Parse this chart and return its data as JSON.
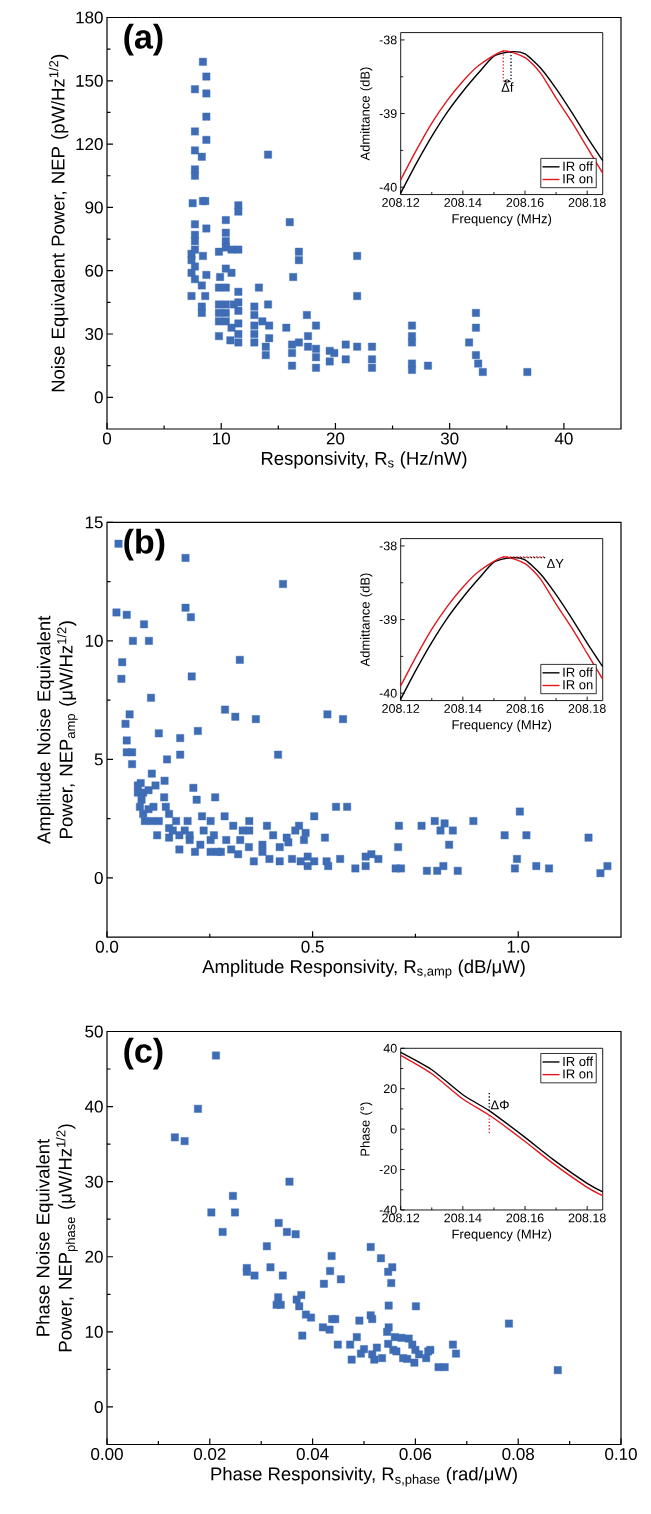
{
  "chart_data": [
    {
      "type": "scatter",
      "xlabel": "Responsivity, R$_{s}$ (Hz/nW)",
      "ylabel": "Noise Equivalent Power, NEP (pW/Hz$^{1/2}$)",
      "color": "#3e6db5",
      "marker": "square",
      "xlim": [
        0,
        45
      ],
      "ylim": [
        -15,
        180
      ],
      "xticks": [
        0,
        10,
        20,
        30,
        40
      ],
      "yticks": [
        0,
        30,
        60,
        90,
        120,
        150,
        180
      ],
      "annotations": [
        "(a)"
      ],
      "x": [
        8.4,
        8.7,
        7.7,
        8.7,
        8.7,
        7.7,
        8.7,
        7.7,
        8.3,
        7.7,
        7.7,
        14.1,
        7.5,
        8.4,
        8.6,
        11.5,
        11.5,
        10.4,
        16.0,
        7.7,
        8.7,
        7.7,
        10.4,
        10.4,
        10.4,
        10.9,
        11.5,
        9.8,
        7.7,
        7.7,
        7.4,
        7.4,
        7.7,
        8.4,
        7.4,
        16.8,
        16.8,
        21.9,
        21.9,
        10.4,
        10.9,
        9.9,
        7.7,
        8.7,
        8.3,
        16.3,
        7.4,
        8.6,
        9.8,
        10.4,
        11.5,
        13.3,
        9.8,
        10.4,
        11.1,
        11.5,
        8.3,
        8.3,
        9.8,
        10.4,
        11.5,
        12.9,
        14.1,
        9.8,
        10.4,
        9.8,
        10.9,
        11.5,
        12.9,
        12.9,
        13.6,
        14.2,
        11.5,
        10.8,
        11.5,
        12.9,
        12.9,
        14.2,
        13.9,
        13.9,
        15.7,
        17.5,
        18.3,
        16.2,
        16.2,
        16.2,
        16.8,
        17.6,
        17.6,
        18.3,
        18.3,
        18.3,
        19.5,
        19.5,
        19.9,
        20.9,
        20.9,
        21.9,
        23.2,
        23.2,
        23.2,
        26.7,
        26.7,
        26.7,
        26.7,
        26.7,
        28.1,
        31.7,
        32.3,
        32.3,
        32.3,
        32.5,
        32.9,
        36.8
      ],
      "values": [
        159,
        152,
        146,
        144,
        133,
        126,
        122,
        117,
        114,
        108,
        105,
        115,
        92,
        93,
        93,
        91,
        88,
        84,
        83,
        82,
        80,
        77,
        78,
        74,
        71,
        70,
        70,
        69,
        74,
        70,
        68,
        65,
        62,
        67,
        59,
        69,
        65,
        67,
        48,
        61,
        59,
        57,
        56,
        58,
        53,
        57,
        48,
        48,
        52,
        52,
        50,
        52,
        44,
        44,
        44,
        45,
        43,
        40,
        40,
        40,
        41,
        43,
        44,
        36,
        36,
        29,
        33,
        35,
        39,
        34,
        36,
        34,
        30,
        27,
        26,
        30,
        26,
        28,
        24,
        20,
        33,
        39,
        34,
        25,
        21,
        15,
        26,
        29,
        24,
        23,
        19,
        14,
        22,
        17,
        21,
        25,
        18,
        24,
        24,
        18,
        14,
        34,
        29,
        26,
        16,
        13,
        15,
        26,
        40,
        33,
        20,
        16,
        12,
        12
      ]
    },
    {
      "type": "line",
      "xlabel": "Frequency (MHz)",
      "ylabel": "Admittance (dB)",
      "xlim": [
        208.12,
        208.185
      ],
      "ylim": [
        -40.1,
        -37.9
      ],
      "xticks": [
        208.12,
        208.14,
        208.16,
        208.18
      ],
      "yticks": [
        -40,
        -39,
        -38
      ],
      "legend": "bottom right",
      "line_style": "solid",
      "annotations": [
        {
          "text": "Δf",
          "x": 208.1543,
          "y": -38.56
        }
      ],
      "series": [
        {
          "name": "IR off",
          "color": "#000000",
          "x": [
            208.12,
            208.125,
            208.13,
            208.135,
            208.14,
            208.145,
            208.15,
            208.1555,
            208.16,
            208.165,
            208.17,
            208.175,
            208.18,
            208.185
          ],
          "values": [
            -40.08,
            -39.68,
            -39.31,
            -38.98,
            -38.7,
            -38.45,
            -38.22,
            -38.16,
            -38.19,
            -38.38,
            -38.66,
            -38.98,
            -39.32,
            -39.64
          ]
        },
        {
          "name": "IR on",
          "color": "#e3161e",
          "x": [
            208.12,
            208.125,
            208.13,
            208.135,
            208.14,
            208.145,
            208.153,
            208.16,
            208.165,
            208.17,
            208.175,
            208.18,
            208.185
          ],
          "values": [
            -39.9,
            -39.5,
            -39.13,
            -38.82,
            -38.56,
            -38.35,
            -38.15,
            -38.24,
            -38.45,
            -38.79,
            -39.11,
            -39.46,
            -39.81
          ]
        }
      ]
    },
    {
      "type": "scatter",
      "xlabel": "Amplitude Responsivity, R$_{s,amp}$ (dB/μW)",
      "ylabel": "Amplitude Noise Equivalent Power, NEP$_{amp}$ (μW/Hz$^{1/2}$)",
      "color": "#3e6db5",
      "marker": "square",
      "xlim": [
        0,
        1.25
      ],
      "ylim": [
        -2.5,
        15
      ],
      "xticks": [
        {
          "value": 0,
          "label": "0.0"
        },
        {
          "value": 0.5,
          "label": "0.5"
        },
        {
          "value": 1,
          "label": "1.0"
        }
      ],
      "yticks": [
        0,
        5,
        10,
        15
      ],
      "annotations": [
        "(b)"
      ],
      "x": [
        0.028,
        0.191,
        0.428,
        0.023,
        0.048,
        0.191,
        0.204,
        0.09,
        0.063,
        0.102,
        0.037,
        0.035,
        0.323,
        0.206,
        0.107,
        0.055,
        0.045,
        0.287,
        0.312,
        0.362,
        0.536,
        0.574,
        0.126,
        0.178,
        0.221,
        0.048,
        0.048,
        0.061,
        0.061,
        0.146,
        0.178,
        0.416,
        0.109,
        0.14,
        0.082,
        0.075,
        0.21,
        0.218,
        0.263,
        0.557,
        0.584,
        1.004,
        0.891,
        0.797,
        0.821,
        0.71,
        0.765,
        0.841,
        0.811,
        0.967,
        1.02,
        1.171,
        0.832,
        0.708,
        0.997,
        0.992,
        1.044,
        1.075,
        1.2,
        1.217,
        0.853,
        0.803,
        0.818,
        0.778,
        0.702,
        0.715,
        0.629,
        0.643,
        0.66,
        0.604,
        0.629,
        0.567,
        0.534,
        0.538,
        0.504,
        0.488,
        0.471,
        0.488,
        0.45,
        0.42,
        0.395,
        0.357,
        0.53,
        0.504,
        0.483,
        0.479,
        0.467,
        0.458,
        0.441,
        0.437,
        0.42,
        0.404,
        0.389,
        0.378,
        0.378,
        0.346,
        0.346,
        0.33,
        0.345,
        0.324,
        0.307,
        0.286,
        0.29,
        0.277,
        0.252,
        0.231,
        0.235,
        0.252,
        0.252,
        0.227,
        0.214,
        0.196,
        0.201,
        0.176,
        0.176,
        0.168,
        0.151,
        0.151,
        0.143,
        0.139,
        0.126,
        0.122,
        0.113,
        0.109,
        0.101,
        0.092,
        0.088,
        0.084,
        0.08,
        0.075,
        0.088,
        0.101,
        0.118,
        0.151,
        0.16,
        0.189,
        0.201,
        0.319,
        0.302,
        0.269,
        0.26
      ],
      "values": [
        14.1,
        13.5,
        12.4,
        11.2,
        11.1,
        11.4,
        11.0,
        10.7,
        10.0,
        10.0,
        9.1,
        8.4,
        9.2,
        8.5,
        7.6,
        6.9,
        6.5,
        7.1,
        6.8,
        6.7,
        6.9,
        6.7,
        6.1,
        5.9,
        6.2,
        5.8,
        5.3,
        5.3,
        4.8,
        5.0,
        5.2,
        5.2,
        4.4,
        4.1,
        4.0,
        3.6,
        3.8,
        3.3,
        3.4,
        3.0,
        3.0,
        2.8,
        2.4,
        2.4,
        2.3,
        2.2,
        2.2,
        2.0,
        2.0,
        1.8,
        1.8,
        1.7,
        1.4,
        1.3,
        0.8,
        0.4,
        0.5,
        0.4,
        0.2,
        0.5,
        0.3,
        0.3,
        0.5,
        0.3,
        0.4,
        0.4,
        0.9,
        1.0,
        0.8,
        0.4,
        0.5,
        0.8,
        0.7,
        0.5,
        0.7,
        0.9,
        0.7,
        0.5,
        0.8,
        0.7,
        0.8,
        0.7,
        1.7,
        2.6,
        1.9,
        1.6,
        2.2,
        2.0,
        1.5,
        1.7,
        1.3,
        1.8,
        2.2,
        1.4,
        1.1,
        2.4,
        2.0,
        2.0,
        1.3,
        1.6,
        2.2,
        2.6,
        1.6,
        1.1,
        2.4,
        2.6,
        2.0,
        1.6,
        1.1,
        1.4,
        1.1,
        2.4,
        1.6,
        1.2,
        1.8,
        2.4,
        2.7,
        2.1,
        3.0,
        3.4,
        2.4,
        1.8,
        3.0,
        2.4,
        2.9,
        2.4,
        2.7,
        3.3,
        3.0,
        3.9,
        3.6,
        3.7,
        3.9,
        1.7,
        2.0,
        2.0,
        1.8,
        1.0,
        1.2,
        1.1,
        1.8
      ]
    },
    {
      "type": "line",
      "xlabel": "Frequency (MHz)",
      "ylabel": "Admittance (dB)",
      "xlim": [
        208.12,
        208.185
      ],
      "ylim": [
        -40.1,
        -37.9
      ],
      "xticks": [
        208.12,
        208.14,
        208.16,
        208.18
      ],
      "yticks": [
        -40,
        -39,
        -38
      ],
      "legend": "bottom right",
      "line_style": "solid",
      "annotations": [
        {
          "text": "ΔY",
          "x": 208.1555,
          "y": -38.16
        }
      ],
      "series": [
        {
          "name": "IR off",
          "color": "#000000",
          "x": [
            208.12,
            208.125,
            208.13,
            208.135,
            208.14,
            208.145,
            208.15,
            208.1555,
            208.16,
            208.165,
            208.17,
            208.175,
            208.18,
            208.185
          ],
          "values": [
            -40.08,
            -39.68,
            -39.31,
            -38.98,
            -38.7,
            -38.45,
            -38.22,
            -38.16,
            -38.19,
            -38.38,
            -38.66,
            -38.98,
            -39.32,
            -39.64
          ]
        },
        {
          "name": "IR on",
          "color": "#e3161e",
          "x": [
            208.12,
            208.125,
            208.13,
            208.135,
            208.14,
            208.145,
            208.153,
            208.16,
            208.165,
            208.17,
            208.175,
            208.18,
            208.185
          ],
          "values": [
            -39.9,
            -39.5,
            -39.13,
            -38.82,
            -38.56,
            -38.35,
            -38.15,
            -38.24,
            -38.45,
            -38.79,
            -39.11,
            -39.46,
            -39.81
          ]
        }
      ]
    },
    {
      "type": "scatter",
      "xlabel": "Phase Responsivity, R$_{s,phase}$ (rad/μW)",
      "ylabel": "Phase Noise Equivalent Power, NEP$_{phase}$ (μW/Hz$^{1/2}$)",
      "color": "#3e6db5",
      "marker": "square",
      "xlim": [
        0,
        0.1
      ],
      "ylim": [
        -5,
        50
      ],
      "xticks": [
        {
          "value": 0,
          "label": "0.00"
        },
        {
          "value": 0.02,
          "label": "0.02"
        },
        {
          "value": 0.04,
          "label": "0.04"
        },
        {
          "value": 0.06,
          "label": "0.06"
        },
        {
          "value": 0.08,
          "label": "0.08"
        },
        {
          "value": 0.1,
          "label": "0.10"
        }
      ],
      "yticks": [
        0,
        10,
        20,
        30,
        40,
        50
      ],
      "annotations": [
        "(c)"
      ],
      "x": [
        0.0212,
        0.0177,
        0.0132,
        0.0151,
        0.0355,
        0.0245,
        0.0203,
        0.0249,
        0.0225,
        0.0334,
        0.035,
        0.0367,
        0.0311,
        0.0513,
        0.0437,
        0.0533,
        0.0272,
        0.0272,
        0.0287,
        0.0318,
        0.0342,
        0.0434,
        0.0455,
        0.0555,
        0.0547,
        0.0553,
        0.0422,
        0.0333,
        0.0378,
        0.033,
        0.0338,
        0.0369,
        0.0374,
        0.0548,
        0.0601,
        0.0387,
        0.0397,
        0.0438,
        0.0444,
        0.0513,
        0.0516,
        0.0491,
        0.0782,
        0.042,
        0.0433,
        0.0548,
        0.0545,
        0.038,
        0.0486,
        0.056,
        0.0573,
        0.0587,
        0.0449,
        0.0473,
        0.0547,
        0.0594,
        0.0673,
        0.05,
        0.0525,
        0.0557,
        0.06,
        0.0629,
        0.0625,
        0.0679,
        0.0494,
        0.0516,
        0.0563,
        0.0576,
        0.0584,
        0.0607,
        0.0621,
        0.0476,
        0.052,
        0.0535,
        0.0598,
        0.0645,
        0.0657,
        0.0877
      ],
      "values": [
        46.8,
        39.7,
        35.9,
        35.4,
        30.0,
        28.1,
        25.9,
        25.9,
        23.3,
        24.5,
        23.3,
        23.0,
        21.4,
        21.3,
        20.1,
        19.8,
        18.5,
        18.0,
        17.5,
        18.6,
        17.5,
        18.1,
        17.0,
        18.6,
        18.0,
        16.5,
        16.4,
        14.6,
        14.9,
        13.6,
        13.6,
        14.3,
        13.4,
        13.5,
        13.4,
        12.3,
        11.9,
        11.7,
        11.7,
        12.2,
        11.7,
        11.5,
        11.1,
        10.6,
        10.3,
        10.6,
        10.0,
        9.5,
        9.3,
        9.3,
        9.2,
        9.1,
        8.3,
        8.3,
        8.4,
        8.3,
        8.3,
        7.7,
        7.9,
        7.6,
        7.6,
        7.6,
        7.4,
        7.1,
        7.1,
        7.0,
        7.4,
        6.5,
        6.4,
        7.0,
        6.5,
        6.3,
        6.3,
        6.5,
        5.9,
        5.3,
        5.3,
        4.9
      ]
    },
    {
      "type": "line",
      "xlabel": "Frequency (MHz)",
      "ylabel": "Phase (°)",
      "xlim": [
        208.12,
        208.185
      ],
      "ylim": [
        -40,
        40
      ],
      "xticks": [
        208.12,
        208.14,
        208.16,
        208.18
      ],
      "yticks": [
        -40,
        -20,
        0,
        20,
        40
      ],
      "legend": "top right",
      "line_style": "solid",
      "annotations": [
        {
          "text": "ΔΦ",
          "x": 208.1485,
          "y": 12
        }
      ],
      "series": [
        {
          "name": "IR off",
          "color": "#000000",
          "x": [
            208.12,
            208.13,
            208.14,
            208.1488,
            208.1596,
            208.1692,
            208.18,
            208.185
          ],
          "values": [
            38,
            29.4,
            17,
            8.8,
            -3.6,
            -15.2,
            -26.8,
            -31
          ]
        },
        {
          "name": "IR on",
          "color": "#e3161e",
          "x": [
            208.12,
            208.13,
            208.14,
            208.1488,
            208.1596,
            208.1692,
            208.18,
            208.185
          ],
          "values": [
            36.5,
            27.4,
            14.9,
            6.6,
            -5.6,
            -17.2,
            -28.8,
            -32.9
          ]
        }
      ]
    }
  ]
}
